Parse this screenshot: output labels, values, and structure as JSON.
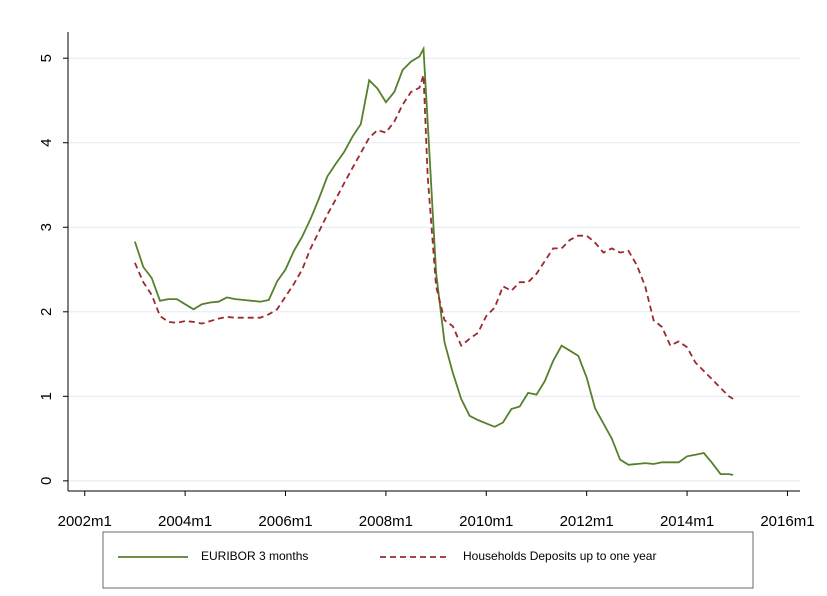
{
  "chart_data": {
    "type": "line",
    "x": [
      "2003m1",
      "2003m3",
      "2003m5",
      "2003m7",
      "2003m9",
      "2003m11",
      "2004m1",
      "2004m3",
      "2004m5",
      "2004m7",
      "2004m9",
      "2004m11",
      "2005m1",
      "2005m3",
      "2005m5",
      "2005m7",
      "2005m9",
      "2005m11",
      "2006m1",
      "2006m3",
      "2006m5",
      "2006m7",
      "2006m9",
      "2006m11",
      "2007m1",
      "2007m3",
      "2007m5",
      "2007m7",
      "2007m9",
      "2007m11",
      "2008m1",
      "2008m3",
      "2008m5",
      "2008m7",
      "2008m9",
      "2008m10",
      "2008m11",
      "2009m1",
      "2009m3",
      "2009m5",
      "2009m7",
      "2009m9",
      "2009m11",
      "2010m1",
      "2010m3",
      "2010m5",
      "2010m7",
      "2010m9",
      "2010m11",
      "2011m1",
      "2011m3",
      "2011m5",
      "2011m7",
      "2011m9",
      "2011m11",
      "2012m1",
      "2012m3",
      "2012m5",
      "2012m7",
      "2012m9",
      "2012m11",
      "2013m1",
      "2013m3",
      "2013m5",
      "2013m7",
      "2013m9",
      "2013m11",
      "2014m1",
      "2014m3",
      "2014m5",
      "2014m7",
      "2014m9",
      "2014m11",
      "2014m12"
    ],
    "series": [
      {
        "name": "EURIBOR 3 months",
        "color": "#56802c",
        "dash": false,
        "values": [
          2.83,
          2.53,
          2.4,
          2.13,
          2.15,
          2.15,
          2.09,
          2.03,
          2.09,
          2.11,
          2.12,
          2.17,
          2.15,
          2.14,
          2.13,
          2.12,
          2.14,
          2.36,
          2.5,
          2.72,
          2.89,
          3.1,
          3.34,
          3.6,
          3.75,
          3.89,
          4.07,
          4.22,
          4.74,
          4.64,
          4.48,
          4.6,
          4.86,
          4.96,
          5.02,
          5.11,
          4.24,
          2.46,
          1.64,
          1.28,
          0.97,
          0.77,
          0.72,
          0.68,
          0.64,
          0.69,
          0.85,
          0.88,
          1.04,
          1.02,
          1.18,
          1.42,
          1.6,
          1.54,
          1.48,
          1.22,
          0.86,
          0.68,
          0.5,
          0.25,
          0.19,
          0.2,
          0.21,
          0.2,
          0.22,
          0.22,
          0.22,
          0.29,
          0.31,
          0.33,
          0.21,
          0.08,
          0.08,
          0.07
        ]
      },
      {
        "name": "Households Deposits up to one year",
        "color": "#9b2a2e",
        "dash": true,
        "values": [
          2.58,
          2.35,
          2.2,
          1.95,
          1.88,
          1.87,
          1.89,
          1.88,
          1.86,
          1.89,
          1.92,
          1.94,
          1.93,
          1.93,
          1.93,
          1.93,
          1.97,
          2.03,
          2.18,
          2.33,
          2.5,
          2.75,
          2.95,
          3.15,
          3.33,
          3.52,
          3.7,
          3.88,
          4.06,
          4.15,
          4.12,
          4.25,
          4.45,
          4.6,
          4.65,
          4.8,
          3.6,
          2.3,
          1.9,
          1.83,
          1.6,
          1.68,
          1.75,
          1.95,
          2.05,
          2.3,
          2.25,
          2.35,
          2.35,
          2.45,
          2.6,
          2.75,
          2.75,
          2.85,
          2.9,
          2.9,
          2.82,
          2.7,
          2.75,
          2.7,
          2.72,
          2.55,
          2.3,
          1.9,
          1.82,
          1.6,
          1.65,
          1.58,
          1.4,
          1.3,
          1.2,
          1.1,
          1.0,
          0.97
        ]
      }
    ],
    "xlim": [
      "2001m9",
      "2016m4"
    ],
    "xticks": [
      "2002m1",
      "2004m1",
      "2006m1",
      "2008m1",
      "2010m1",
      "2012m1",
      "2014m1",
      "2016m1"
    ],
    "ylim": [
      -0.12,
      5.31
    ],
    "yticks": [
      0,
      1,
      2,
      3,
      4,
      5
    ],
    "grid": true
  }
}
